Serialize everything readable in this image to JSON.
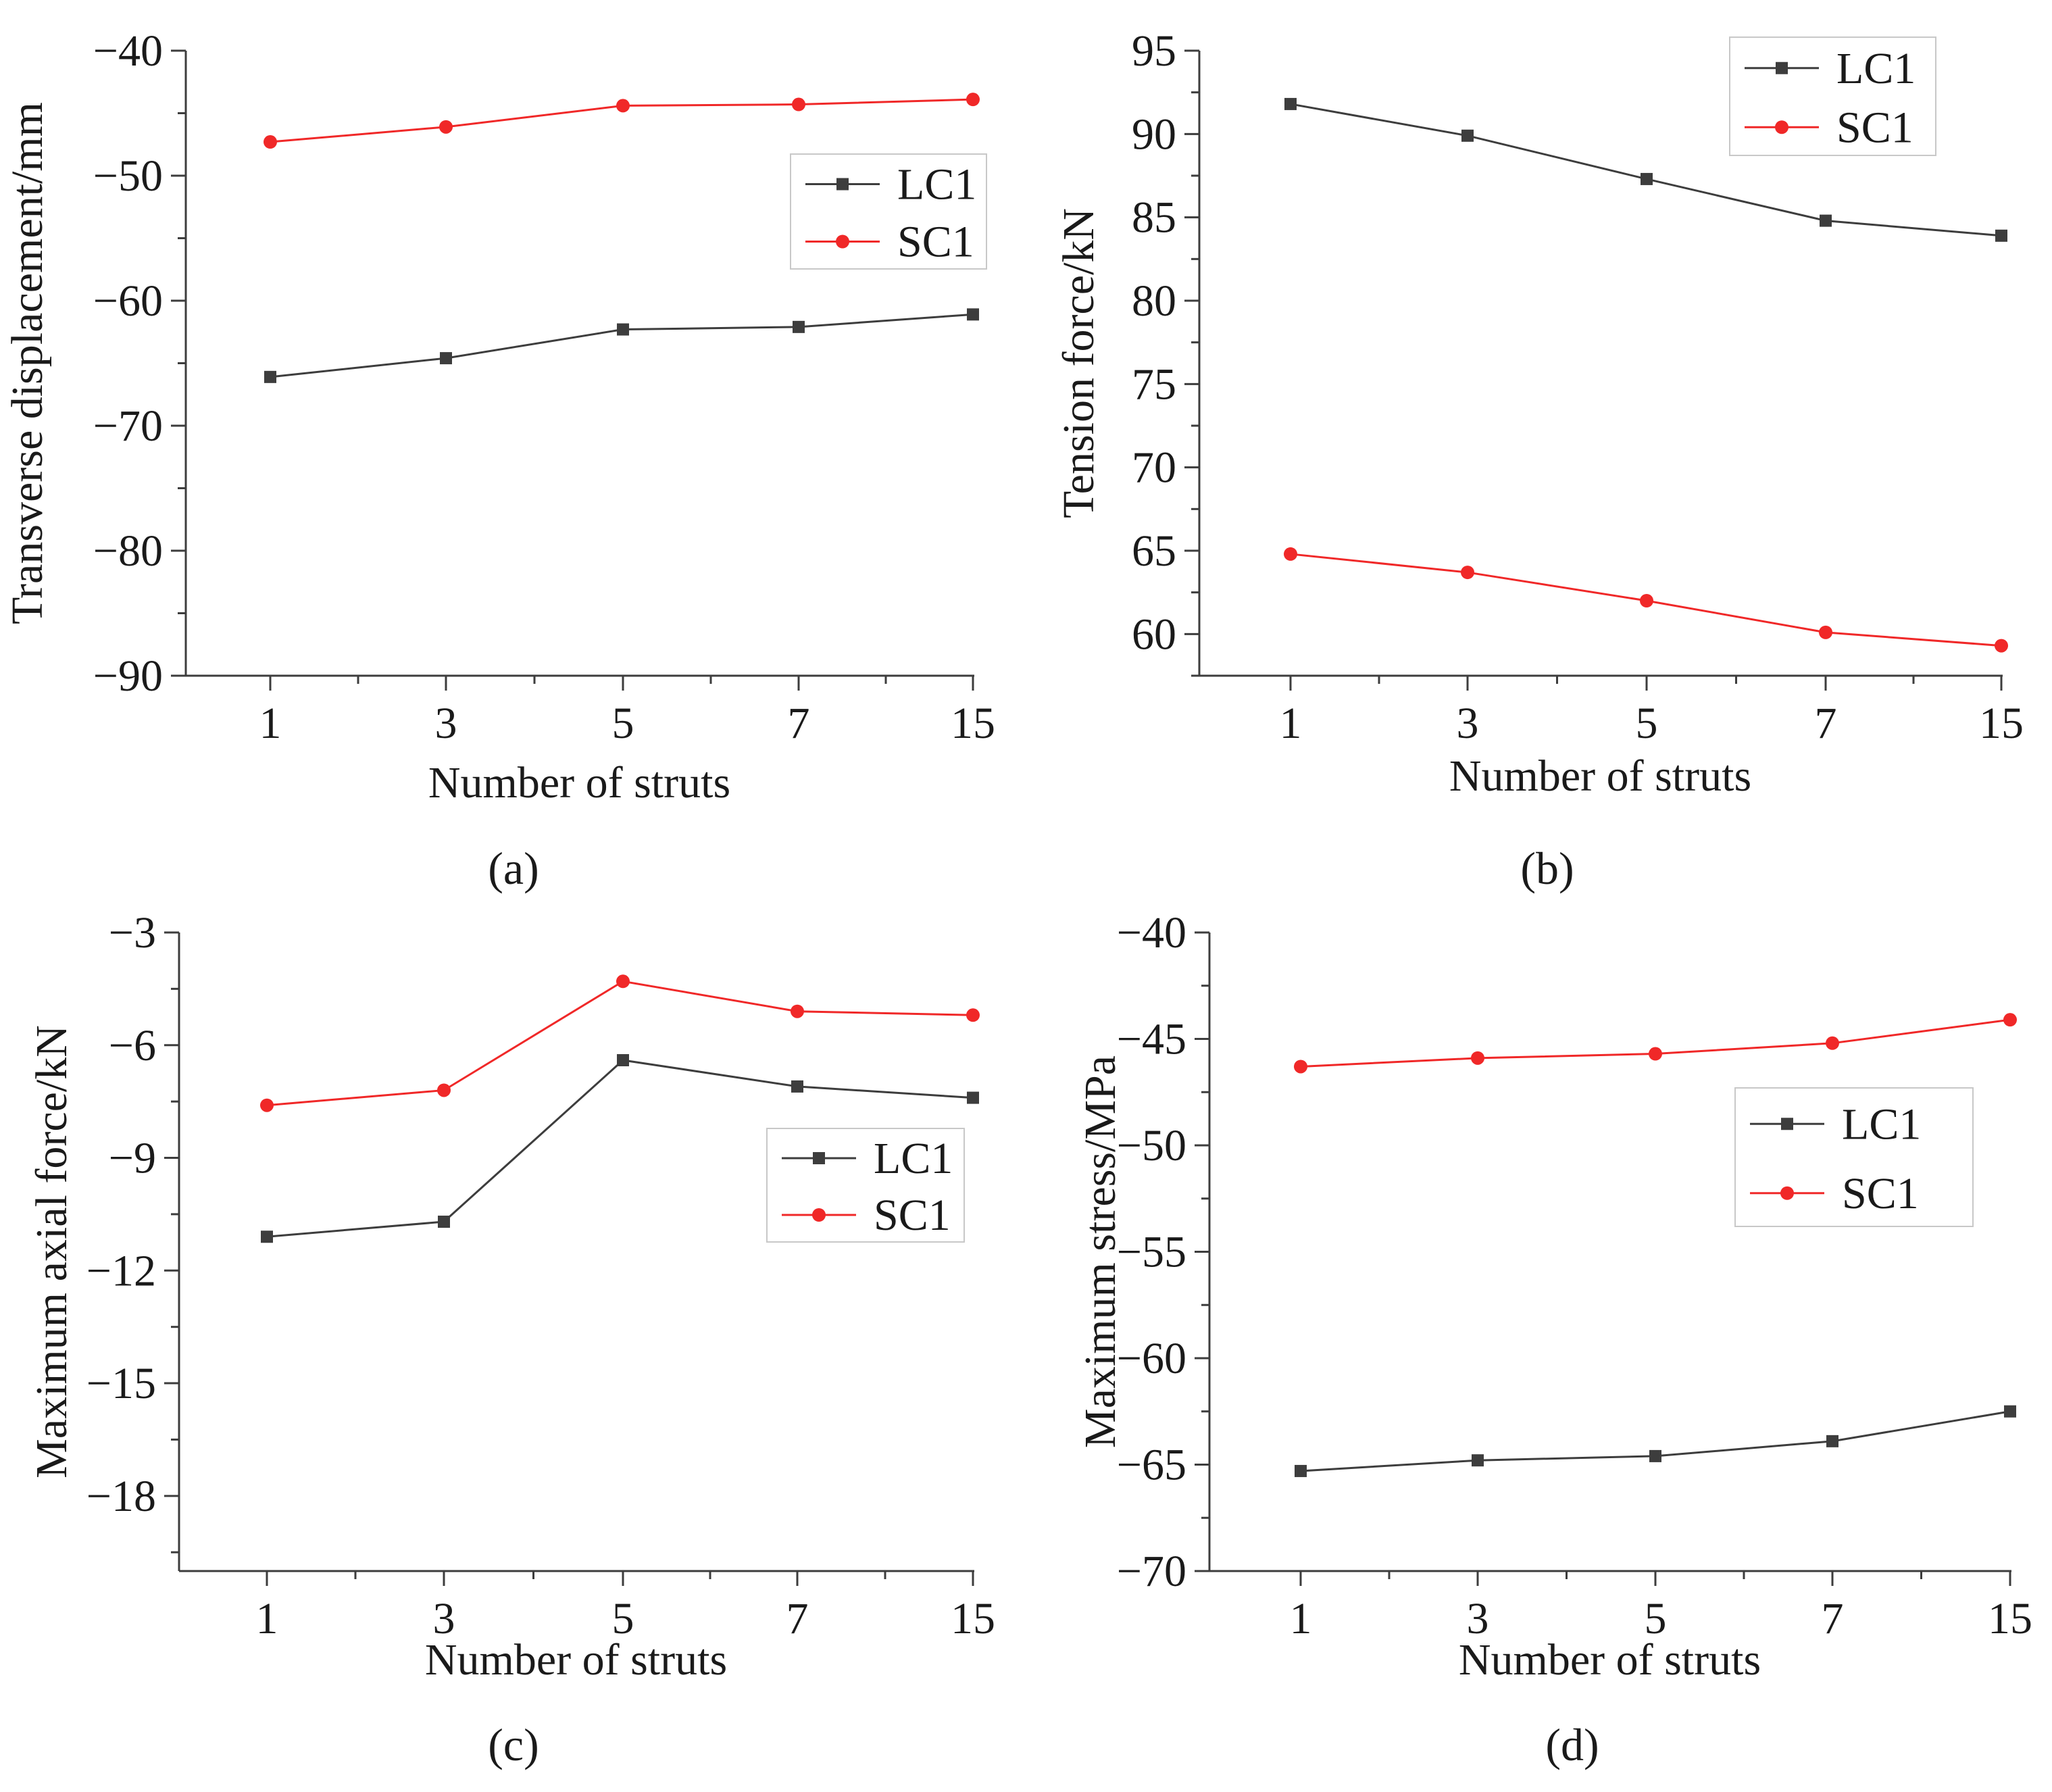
{
  "colors": {
    "LC1": "#3d3d3d",
    "SC1": "#f02828"
  },
  "chart_data": [
    {
      "type": "line",
      "panel_label": "(a)",
      "categories": [
        "1",
        "3",
        "5",
        "7",
        "15"
      ],
      "xlabel": "Number of struts",
      "ylabel": "Transverse displacement/mm",
      "ylim": [
        -90,
        -40
      ],
      "yticks": [
        -40,
        -50,
        -60,
        -70,
        -80,
        -90
      ],
      "ytick_labels": [
        "−40",
        "−50",
        "−60",
        "−70",
        "−80",
        "−90"
      ],
      "legend_position": "upper-right-middle",
      "series": [
        {
          "name": "LC1",
          "marker": "square",
          "values": [
            -66.1,
            -64.6,
            -62.3,
            -62.1,
            -61.1
          ]
        },
        {
          "name": "SC1",
          "marker": "circle",
          "values": [
            -47.3,
            -46.1,
            -44.4,
            -44.3,
            -43.9
          ]
        }
      ]
    },
    {
      "type": "line",
      "panel_label": "(b)",
      "categories": [
        "1",
        "3",
        "5",
        "7",
        "15"
      ],
      "xlabel": "Number of struts",
      "ylabel": "Tension force/kN",
      "ylim": [
        57.5,
        95
      ],
      "yticks": [
        60,
        65,
        70,
        75,
        80,
        85,
        90,
        95
      ],
      "ytick_labels": [
        "60",
        "65",
        "70",
        "75",
        "80",
        "85",
        "90",
        "95"
      ],
      "legend_position": "top-right",
      "series": [
        {
          "name": "LC1",
          "marker": "square",
          "values": [
            91.8,
            89.9,
            87.3,
            84.8,
            83.9
          ]
        },
        {
          "name": "SC1",
          "marker": "circle",
          "values": [
            64.8,
            63.7,
            62.0,
            60.1,
            59.3
          ]
        }
      ]
    },
    {
      "type": "line",
      "panel_label": "(c)",
      "categories": [
        "1",
        "3",
        "5",
        "7",
        "15"
      ],
      "xlabel": "Number of struts",
      "ylabel": "Maximum axial force/kN",
      "ylim": [
        -20,
        -3
      ],
      "yticks": [
        -3,
        -6,
        -9,
        -12,
        -15,
        -18
      ],
      "ytick_labels": [
        "−3",
        "−6",
        "−9",
        "−12",
        "−15",
        "−18"
      ],
      "legend_position": "right-middle",
      "series": [
        {
          "name": "LC1",
          "marker": "square",
          "values": [
            -11.1,
            -10.7,
            -6.4,
            -7.1,
            -7.4
          ]
        },
        {
          "name": "SC1",
          "marker": "circle",
          "values": [
            -7.6,
            -7.2,
            -4.3,
            -5.1,
            -5.2
          ]
        }
      ]
    },
    {
      "type": "line",
      "panel_label": "(d)",
      "categories": [
        "1",
        "3",
        "5",
        "7",
        "15"
      ],
      "xlabel": "Number of struts",
      "ylabel": "Maximum stress/MPa",
      "ylim": [
        -70,
        -40
      ],
      "yticks": [
        -40,
        -45,
        -50,
        -55,
        -60,
        -65,
        -70
      ],
      "ytick_labels": [
        "−40",
        "−45",
        "−50",
        "−55",
        "−60",
        "−65",
        "−70"
      ],
      "legend_position": "right-upper-middle",
      "series": [
        {
          "name": "LC1",
          "marker": "square",
          "values": [
            -65.3,
            -64.8,
            -64.6,
            -63.9,
            -62.5
          ]
        },
        {
          "name": "SC1",
          "marker": "circle",
          "values": [
            -46.3,
            -45.9,
            -45.7,
            -45.2,
            -44.1
          ]
        }
      ]
    }
  ]
}
